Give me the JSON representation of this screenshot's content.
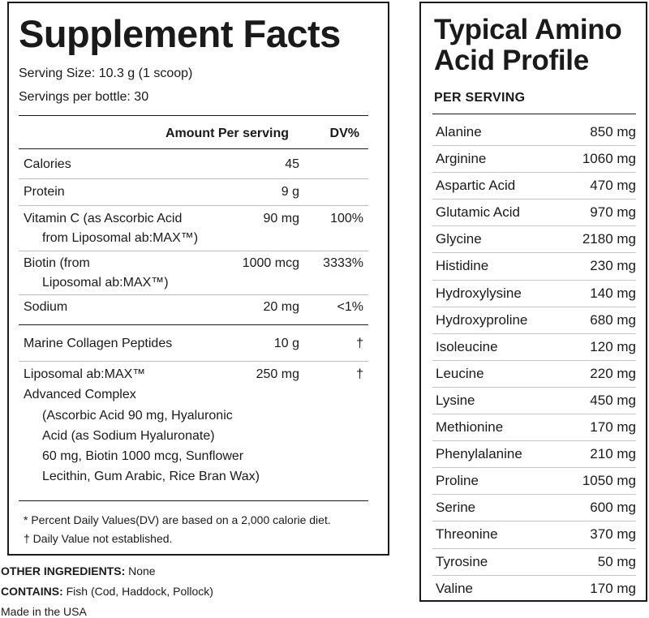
{
  "supplement_facts": {
    "title": "Supplement Facts",
    "serving_size": "Serving Size: 10.3 g (1 scoop)",
    "servings_per_bottle": "Servings per bottle: 30",
    "header_amount": "Amount Per serving",
    "header_dv": "DV%",
    "rows": [
      {
        "name": "Calories",
        "name2": "",
        "amount": "45",
        "dv": ""
      },
      {
        "name": "Protein",
        "name2": "",
        "amount": "9 g",
        "dv": ""
      },
      {
        "name": "Vitamin C  (as Ascorbic Acid",
        "name2": "from Liposomal ab:MAX™)",
        "amount": "90 mg",
        "dv": "100%"
      },
      {
        "name": "Biotin (from",
        "name2": "Liposomal ab:MAX™)",
        "amount": "1000 mcg",
        "dv": "3333%"
      },
      {
        "name": "Sodium",
        "name2": "",
        "amount": "20 mg",
        "dv": "<1%"
      },
      {
        "name": "Marine Collagen Peptides",
        "name2": "",
        "amount": "10 g",
        "dv": "†"
      },
      {
        "name": "Liposomal ab:MAX™",
        "name2": "",
        "amount": "250 mg",
        "dv": "†"
      }
    ],
    "complex_name": "Advanced Complex",
    "complex_lines": [
      "(Ascorbic Acid 90 mg, Hyaluronic",
      "Acid (as Sodium Hyaluronate)",
      "60 mg, Biotin 1000 mcg, Sunflower",
      "Lecithin, Gum Arabic, Rice Bran Wax)"
    ],
    "footnote_1": "* Percent Daily Values(DV) are based on a 2,000 calorie diet.",
    "footnote_2": "† Daily Value not established."
  },
  "other": {
    "ingredients_label": "OTHER INGREDIENTS:",
    "ingredients_value": " None",
    "contains_label": "CONTAINS:",
    "contains_value": " Fish (Cod, Haddock, Pollock)",
    "origin": "Made in the USA"
  },
  "amino_profile": {
    "title_line1": "Typical Amino",
    "title_line2": "Acid Profile",
    "subtitle": "PER SERVING",
    "items": [
      {
        "name": "Alanine",
        "value": "850 mg"
      },
      {
        "name": "Arginine",
        "value": "1060 mg"
      },
      {
        "name": "Aspartic Acid",
        "value": "470 mg"
      },
      {
        "name": "Glutamic Acid",
        "value": "970 mg"
      },
      {
        "name": "Glycine",
        "value": "2180 mg"
      },
      {
        "name": "Histidine",
        "value": "230 mg"
      },
      {
        "name": "Hydroxylysine",
        "value": "140 mg"
      },
      {
        "name": "Hydroxyproline",
        "value": "680 mg"
      },
      {
        "name": "Isoleucine",
        "value": "120 mg"
      },
      {
        "name": "Leucine",
        "value": "220 mg"
      },
      {
        "name": "Lysine",
        "value": "450 mg"
      },
      {
        "name": "Methionine",
        "value": "170 mg"
      },
      {
        "name": "Phenylalanine",
        "value": "210 mg"
      },
      {
        "name": "Proline",
        "value": "1050 mg"
      },
      {
        "name": "Serine",
        "value": "600 mg"
      },
      {
        "name": "Threonine",
        "value": "370 mg"
      },
      {
        "name": "Tyrosine",
        "value": "50 mg"
      },
      {
        "name": "Valine",
        "value": "170 mg"
      }
    ]
  }
}
